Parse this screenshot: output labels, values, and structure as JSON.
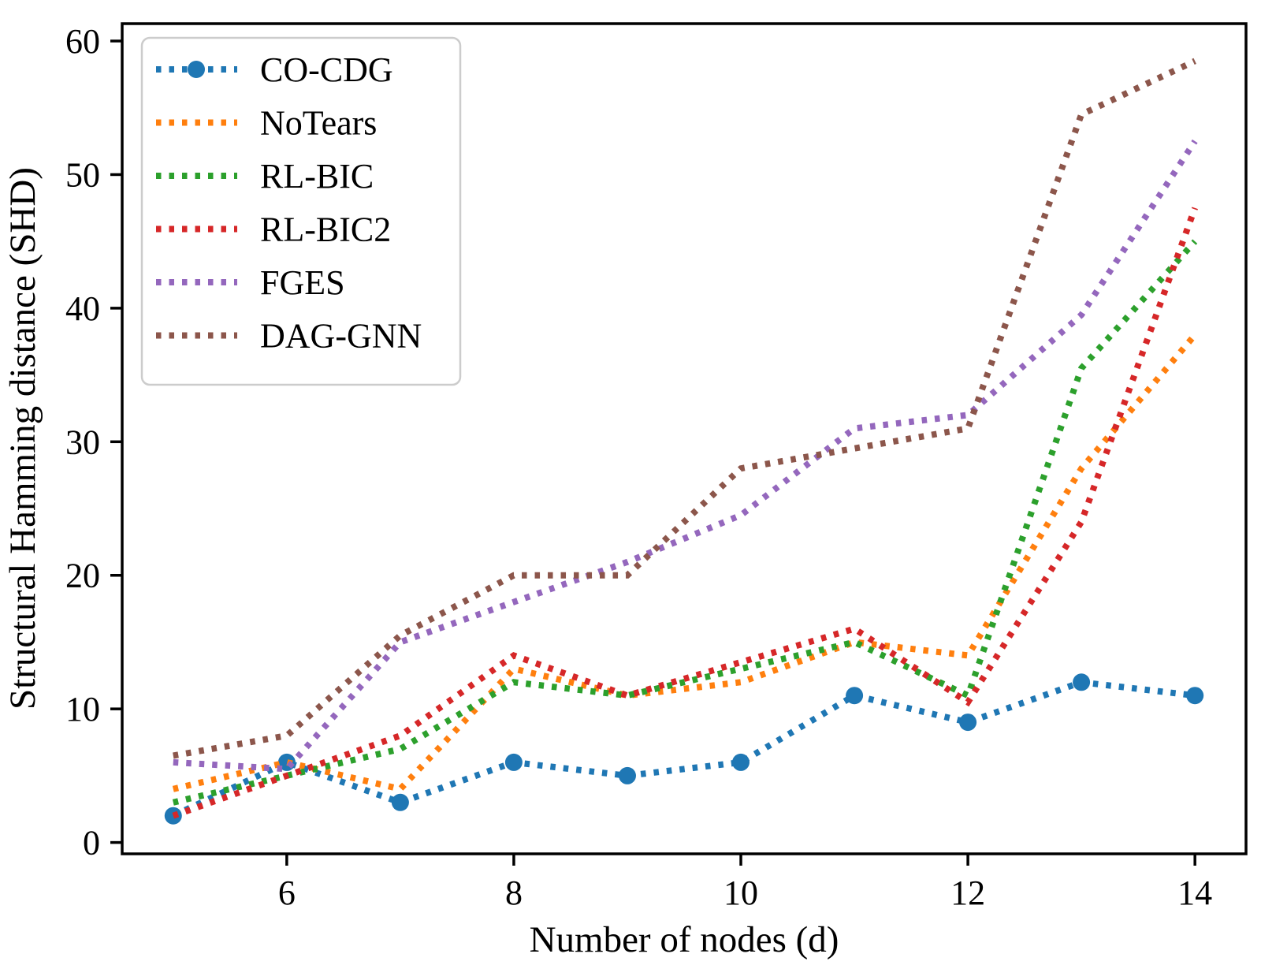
{
  "chart_data": {
    "type": "line",
    "title": "",
    "xlabel": "Number of nodes (d)",
    "ylabel": "Structural Hamming distance (SHD)",
    "line_style": "dotted",
    "grid": false,
    "legend_position": "upper left",
    "x": [
      5,
      6,
      7,
      8,
      9,
      10,
      11,
      12,
      13,
      14
    ],
    "xticks": [
      6,
      8,
      10,
      12,
      14
    ],
    "yticks": [
      0,
      10,
      20,
      30,
      40,
      50,
      60
    ],
    "xlim": [
      4.55,
      14.45
    ],
    "ylim": [
      -0.85,
      61.3
    ],
    "series": [
      {
        "name": "CO-CDG",
        "color": "#1f77b4",
        "marker": "circle",
        "values": [
          2,
          6,
          3,
          6,
          5,
          6,
          11,
          9,
          12,
          11
        ]
      },
      {
        "name": "NoTears",
        "color": "#ff7f0e",
        "marker": "none",
        "values": [
          4,
          6,
          4,
          13,
          11,
          12,
          15,
          14,
          28,
          38
        ]
      },
      {
        "name": "RL-BIC",
        "color": "#2ca02c",
        "marker": "none",
        "values": [
          3,
          5,
          7,
          12,
          11,
          13,
          15,
          11,
          35.5,
          45
        ]
      },
      {
        "name": "RL-BIC2",
        "color": "#d62728",
        "marker": "none",
        "values": [
          2,
          5,
          8,
          14,
          11,
          13.5,
          16,
          10.5,
          24,
          47.5
        ]
      },
      {
        "name": "FGES",
        "color": "#9467bd",
        "marker": "none",
        "values": [
          6,
          5.5,
          15,
          18,
          21,
          24.5,
          31,
          32,
          39.5,
          52.5
        ]
      },
      {
        "name": "DAG-GNN",
        "color": "#8c564b",
        "marker": "none",
        "values": [
          6.5,
          8,
          15.5,
          20,
          20,
          28,
          29.5,
          31,
          54.5,
          58.5
        ]
      }
    ]
  }
}
